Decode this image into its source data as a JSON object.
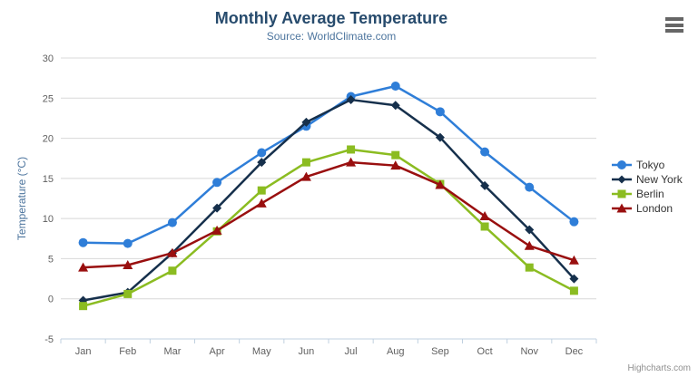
{
  "header": {
    "title": "Monthly Average Temperature",
    "subtitle": "Source: WorldClimate.com"
  },
  "context_menu": {
    "icon": "hamburger-icon",
    "bar_color": "#666666"
  },
  "credits": {
    "label": "Highcharts.com"
  },
  "chart_data": {
    "type": "line",
    "title": "Monthly Average Temperature",
    "subtitle": "Source: WorldClimate.com",
    "categories": [
      "Jan",
      "Feb",
      "Mar",
      "Apr",
      "May",
      "Jun",
      "Jul",
      "Aug",
      "Sep",
      "Oct",
      "Nov",
      "Dec"
    ],
    "series": [
      {
        "name": "Tokyo",
        "color": "#2f7ed8",
        "marker": "circle",
        "values": [
          7.0,
          6.9,
          9.5,
          14.5,
          18.2,
          21.5,
          25.2,
          26.5,
          23.3,
          18.3,
          13.9,
          9.6
        ]
      },
      {
        "name": "New York",
        "color": "#16304c",
        "marker": "diamond",
        "values": [
          -0.2,
          0.8,
          5.7,
          11.3,
          17.0,
          22.0,
          24.8,
          24.1,
          20.1,
          14.1,
          8.6,
          2.5
        ]
      },
      {
        "name": "Berlin",
        "color": "#8bbc21",
        "marker": "square",
        "values": [
          -0.9,
          0.6,
          3.5,
          8.4,
          13.5,
          17.0,
          18.6,
          17.9,
          14.3,
          9.0,
          3.9,
          1.0
        ]
      },
      {
        "name": "London",
        "color": "#990f0f",
        "marker": "triangle",
        "values": [
          3.9,
          4.2,
          5.7,
          8.5,
          11.9,
          15.2,
          17.0,
          16.6,
          14.2,
          10.3,
          6.6,
          4.8
        ]
      }
    ],
    "xlabel": "",
    "ylabel": "Temperature (°C)",
    "ylim": [
      -5,
      30
    ],
    "yticks": [
      -5,
      0,
      5,
      10,
      15,
      20,
      25,
      30
    ],
    "grid": true,
    "legend_position": "right",
    "grid_color": "#d8d8d8",
    "axis_line_color": "#c0d0e0",
    "axis_label_color": "#606060",
    "axis_title_color": "#4d759e",
    "legend_text_color": "#333333"
  }
}
